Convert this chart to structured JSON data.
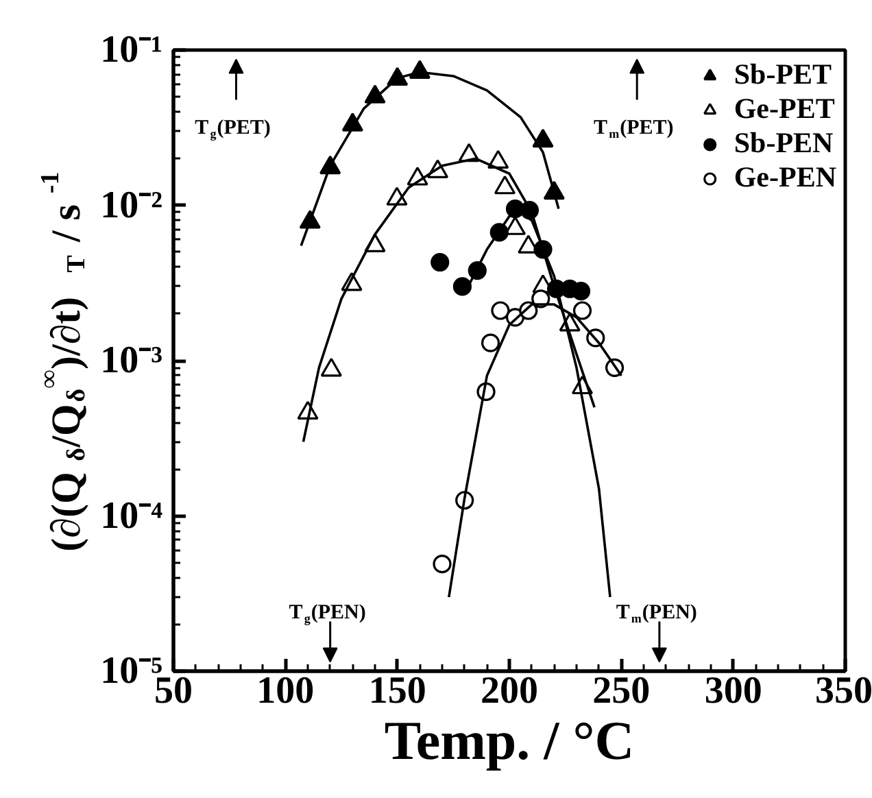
{
  "chart_data": {
    "type": "scatter",
    "xlabel": "Temp. / °C",
    "ylabel": "(∂(Q$_{δ}$/Q$_{δ}$$^{∞}$)/∂t)$_{T}$ / s$^{-1}$",
    "log": "y",
    "xlim": [
      50,
      350
    ],
    "ylim": [
      1e-05,
      0.1
    ],
    "xticks": [
      50,
      100,
      150,
      200,
      250,
      300,
      350
    ],
    "yticks": [
      {
        "value": 1e-05,
        "label": "10⁻⁵"
      },
      {
        "value": 0.0001,
        "label": "10⁻⁴"
      },
      {
        "value": 0.001,
        "label": "10⁻³"
      },
      {
        "value": 0.01,
        "label": "10⁻²"
      },
      {
        "value": 0.1,
        "label": "10⁻¹"
      }
    ],
    "grid": false,
    "legend": "top right",
    "series": [
      {
        "name": "Sb-PET",
        "color": "#000000",
        "marker": "triangle",
        "x": [
          111,
          120,
          130,
          140,
          150,
          160,
          215,
          220
        ],
        "values": [
          0.0078,
          0.0175,
          0.033,
          0.05,
          0.065,
          0.072,
          0.026,
          0.012
        ]
      },
      {
        "name": "Ge-PET",
        "color": "#000000",
        "marker": "triangle_open",
        "x": [
          110,
          120.5,
          129.6,
          140,
          149.8,
          159,
          168,
          182,
          195,
          198,
          202.6,
          208.5,
          215,
          227,
          232.6
        ],
        "values": [
          0.00046,
          0.00087,
          0.0031,
          0.0055,
          0.011,
          0.0148,
          0.0165,
          0.021,
          0.019,
          0.013,
          0.0071,
          0.0054,
          0.003,
          0.0017,
          0.00067
        ]
      },
      {
        "name": "Sb-PEN",
        "color": "#000000",
        "marker": "circle",
        "x": [
          169,
          179,
          185.7,
          195.5,
          202.6,
          209,
          215,
          221,
          227,
          232
        ],
        "values": [
          0.0043,
          0.003,
          0.0038,
          0.0067,
          0.0095,
          0.0093,
          0.0052,
          0.0029,
          0.0029,
          0.0028
        ]
      },
      {
        "name": "Ge-PEN",
        "color": "#000000",
        "marker": "circle_open",
        "x": [
          170,
          180,
          189.6,
          191.6,
          196,
          202.6,
          208.5,
          214,
          232.6,
          238.5,
          247
        ],
        "values": [
          4.9e-05,
          0.000126,
          0.00063,
          0.0013,
          0.0021,
          0.0019,
          0.0021,
          0.0025,
          0.0021,
          0.0014,
          0.0009
        ]
      },
      {
        "type": "line",
        "color": "#000000",
        "x": [
          107,
          120,
          135,
          150,
          160,
          175,
          190,
          205,
          215,
          222
        ],
        "values": [
          0.0055,
          0.018,
          0.042,
          0.066,
          0.072,
          0.068,
          0.055,
          0.037,
          0.022,
          0.0095
        ]
      },
      {
        "type": "line",
        "color": "#000000",
        "x": [
          108,
          115,
          125,
          140,
          155,
          170,
          185,
          200,
          210,
          220,
          230,
          238
        ],
        "values": [
          0.0003,
          0.0009,
          0.0025,
          0.0065,
          0.013,
          0.018,
          0.02,
          0.016,
          0.009,
          0.003,
          0.0011,
          0.0005
        ]
      },
      {
        "type": "line",
        "color": "#000000",
        "x": [
          180,
          190,
          200,
          205,
          210,
          220,
          230,
          240,
          245
        ],
        "values": [
          0.0027,
          0.0052,
          0.0085,
          0.009,
          0.008,
          0.0035,
          0.0009,
          0.00015,
          3e-05
        ]
      },
      {
        "type": "line",
        "color": "#000000",
        "x": [
          173,
          180,
          190,
          200,
          210,
          220,
          230,
          240,
          250
        ],
        "values": [
          3e-05,
          0.00013,
          0.0008,
          0.0017,
          0.0023,
          0.0023,
          0.0019,
          0.0013,
          0.0008
        ]
      }
    ],
    "annotations": [
      "T$_{g}$(PET)",
      "T$_{m}$(PET)",
      "T$_{g}$(PEN)",
      "T$_{m}$(PEN)"
    ]
  }
}
